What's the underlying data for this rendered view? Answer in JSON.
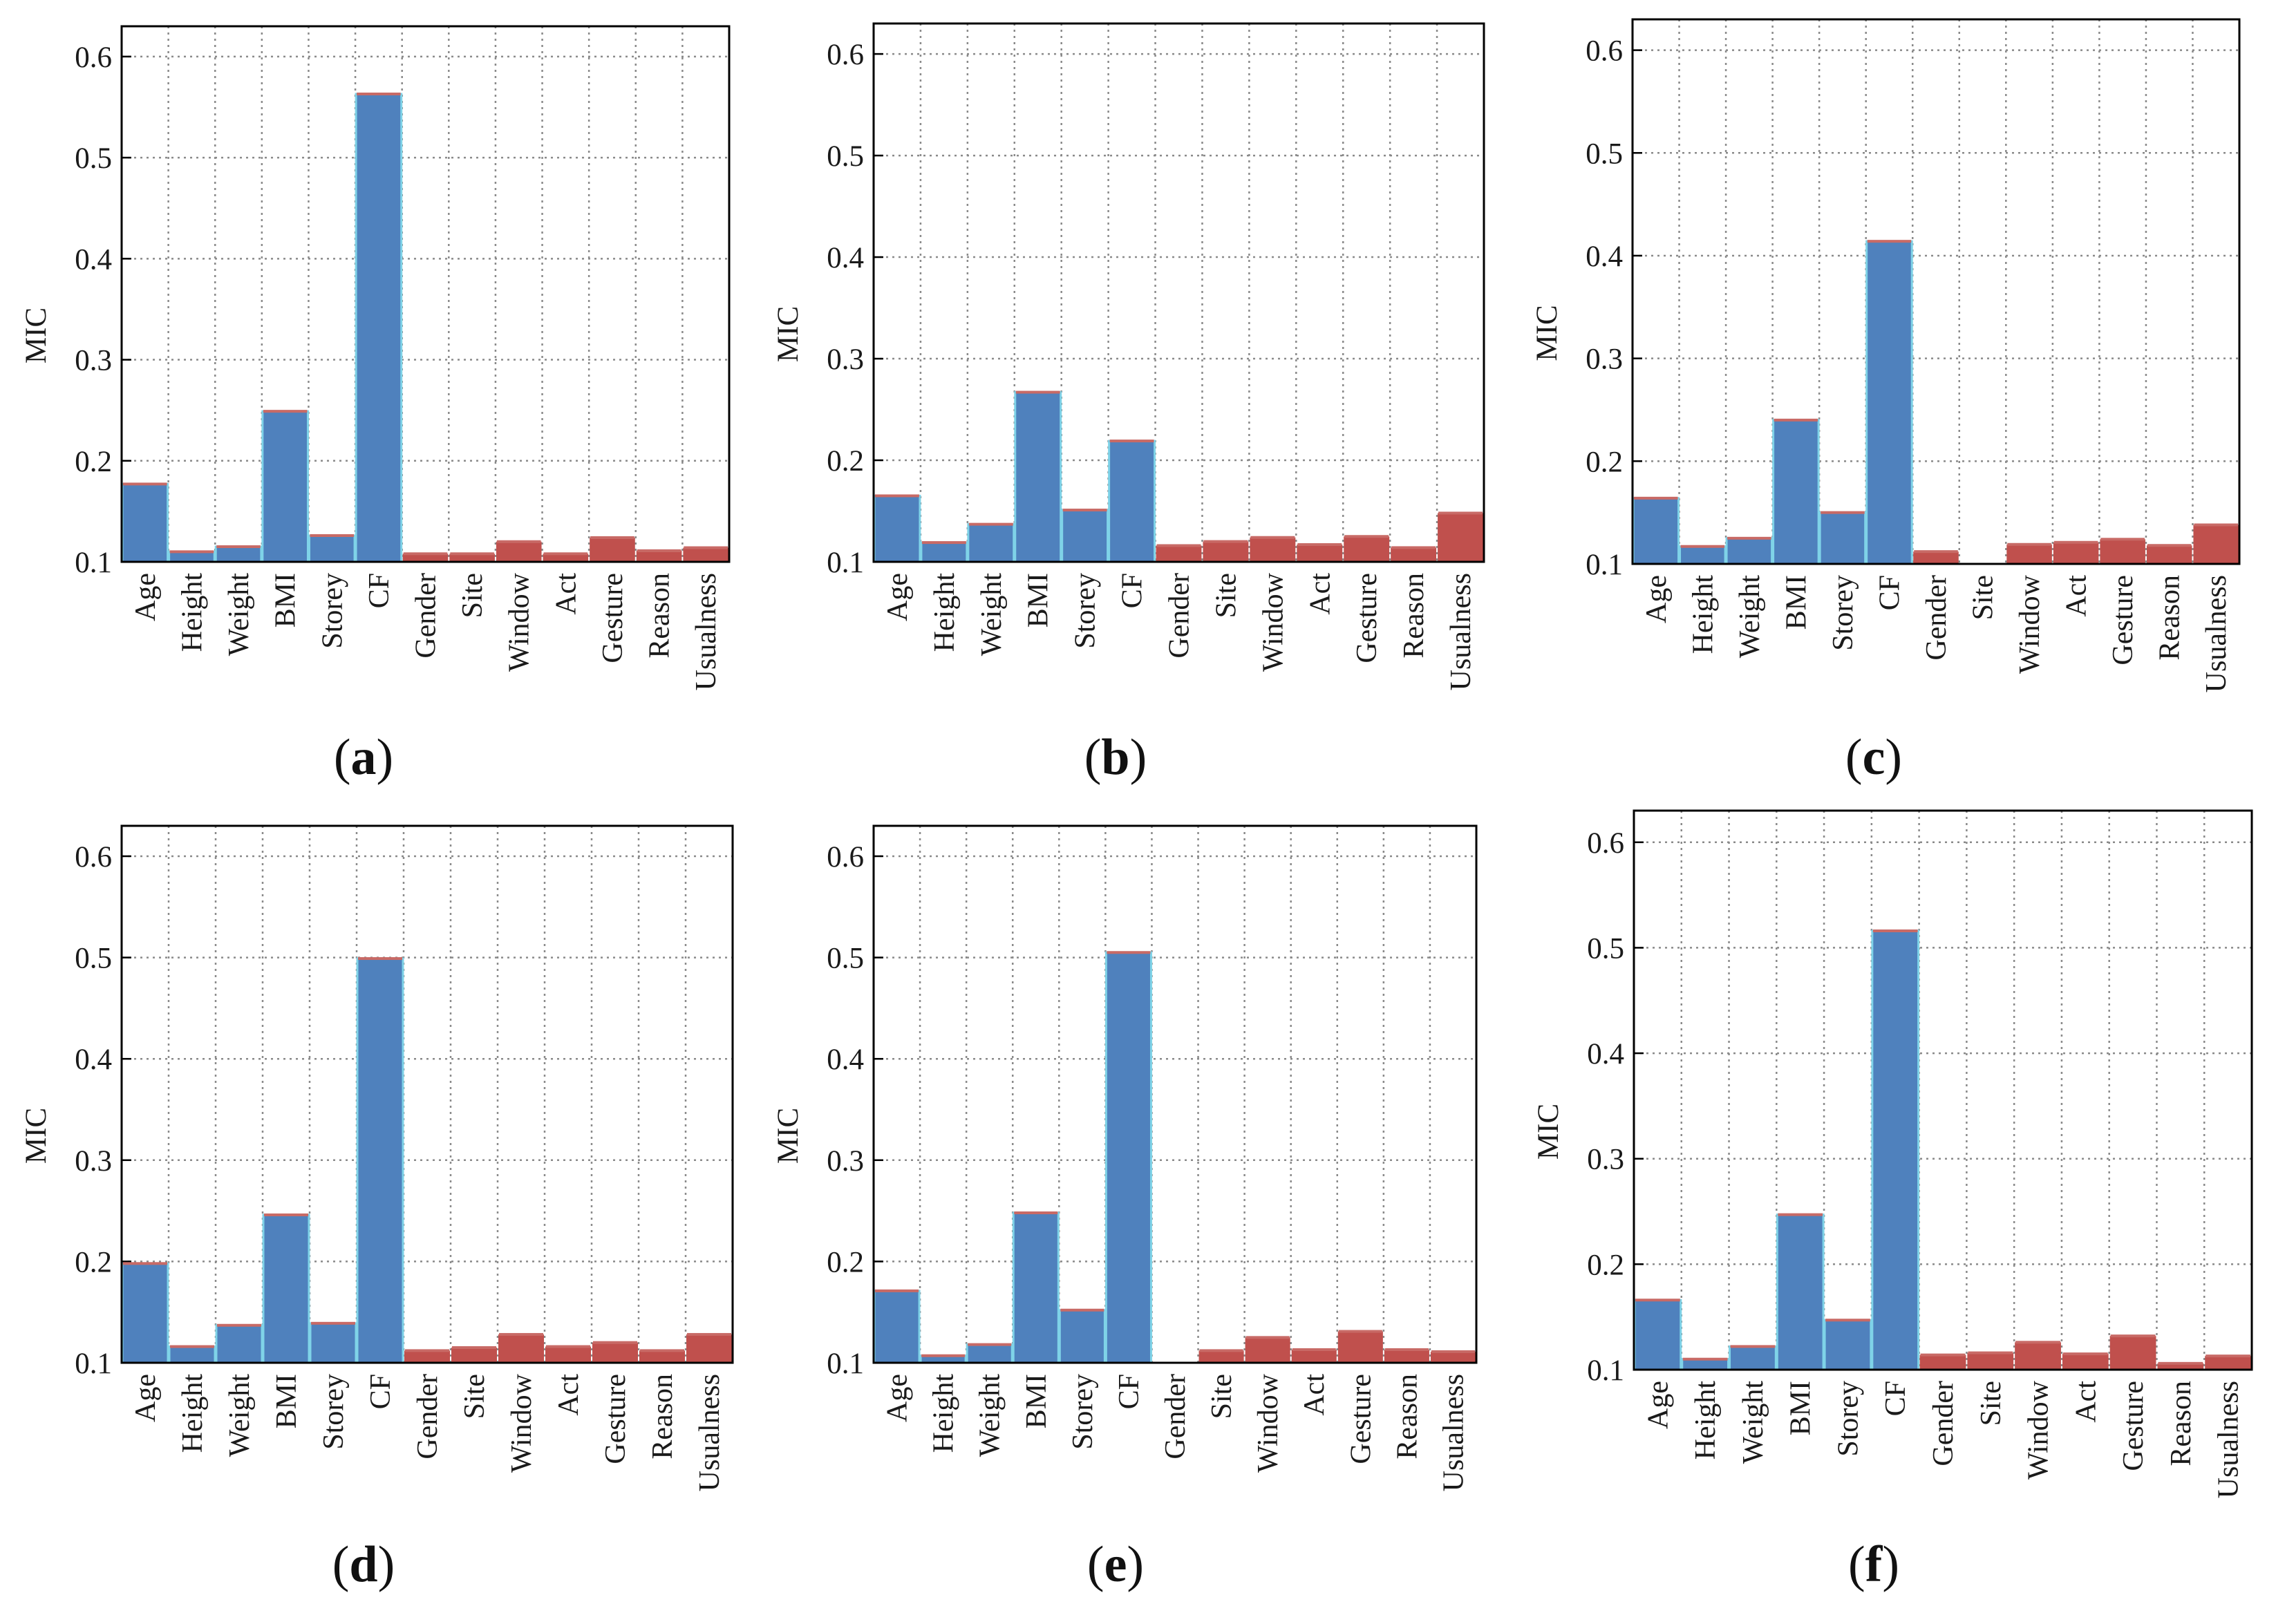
{
  "figure": {
    "colors": {
      "blue": "#4f81bd",
      "red": "#c0504d",
      "blue_edge": "#7fd3e8",
      "red_top": "#c86a66",
      "grid": "#8a8a8a",
      "axis": "#000000"
    }
  },
  "chart_data": [
    {
      "type": "bar",
      "panel_label": "a",
      "ylabel": "MIC",
      "ylim": [
        0.1,
        0.63
      ],
      "yticks": [
        "0.1",
        "0.2",
        "0.3",
        "0.4",
        "0.5",
        "0.6"
      ],
      "grid": true,
      "categories": [
        "Age",
        "Height",
        "Weight",
        "BMI",
        "Storey",
        "CF",
        "Gender",
        "Site",
        "Window",
        "Act",
        "Gesture",
        "Reason",
        "Usualness"
      ],
      "values": [
        0.177,
        0.11,
        0.115,
        0.249,
        0.126,
        0.563,
        0.108,
        0.108,
        0.12,
        0.108,
        0.124,
        0.111,
        0.114
      ],
      "groups": [
        "blue",
        "blue",
        "blue",
        "blue",
        "blue",
        "blue",
        "red",
        "red",
        "red",
        "red",
        "red",
        "red",
        "red"
      ]
    },
    {
      "type": "bar",
      "panel_label": "b",
      "ylabel": "MIC",
      "ylim": [
        0.1,
        0.63
      ],
      "yticks": [
        "0.1",
        "0.2",
        "0.3",
        "0.4",
        "0.5",
        "0.6"
      ],
      "grid": true,
      "categories": [
        "Age",
        "Height",
        "Weight",
        "BMI",
        "Storey",
        "CF",
        "Gender",
        "Site",
        "Window",
        "Act",
        "Gesture",
        "Reason",
        "Usualness"
      ],
      "values": [
        0.165,
        0.119,
        0.137,
        0.267,
        0.151,
        0.219,
        0.116,
        0.12,
        0.124,
        0.117,
        0.125,
        0.114,
        0.148
      ],
      "groups": [
        "blue",
        "blue",
        "blue",
        "blue",
        "blue",
        "blue",
        "red",
        "red",
        "red",
        "red",
        "red",
        "red",
        "red"
      ]
    },
    {
      "type": "bar",
      "panel_label": "c",
      "ylabel": "MIC",
      "ylim": [
        0.1,
        0.63
      ],
      "yticks": [
        "0.1",
        "0.2",
        "0.3",
        "0.4",
        "0.5",
        "0.6"
      ],
      "grid": true,
      "categories": [
        "Age",
        "Height",
        "Weight",
        "BMI",
        "Storey",
        "CF",
        "Gender",
        "Site",
        "Window",
        "Act",
        "Gesture",
        "Reason",
        "Usualness"
      ],
      "values": [
        0.164,
        0.117,
        0.125,
        0.24,
        0.15,
        0.414,
        0.112,
        0.1,
        0.119,
        0.121,
        0.124,
        0.118,
        0.138
      ],
      "groups": [
        "blue",
        "blue",
        "blue",
        "blue",
        "blue",
        "blue",
        "red",
        "red",
        "red",
        "red",
        "red",
        "red",
        "red"
      ]
    },
    {
      "type": "bar",
      "panel_label": "d",
      "ylabel": "MIC",
      "ylim": [
        0.1,
        0.63
      ],
      "yticks": [
        "0.1",
        "0.2",
        "0.3",
        "0.4",
        "0.5",
        "0.6"
      ],
      "grid": true,
      "categories": [
        "Age",
        "Height",
        "Weight",
        "BMI",
        "Storey",
        "CF",
        "Gender",
        "Site",
        "Window",
        "Act",
        "Gesture",
        "Reason",
        "Usualness"
      ],
      "values": [
        0.198,
        0.116,
        0.137,
        0.246,
        0.139,
        0.499,
        0.112,
        0.115,
        0.128,
        0.116,
        0.12,
        0.112,
        0.128
      ],
      "groups": [
        "blue",
        "blue",
        "blue",
        "blue",
        "blue",
        "blue",
        "red",
        "red",
        "red",
        "red",
        "red",
        "red",
        "red"
      ]
    },
    {
      "type": "bar",
      "panel_label": "e",
      "ylabel": "MIC",
      "ylim": [
        0.1,
        0.63
      ],
      "yticks": [
        "0.1",
        "0.2",
        "0.3",
        "0.4",
        "0.5",
        "0.6"
      ],
      "grid": true,
      "categories": [
        "Age",
        "Height",
        "Weight",
        "BMI",
        "Storey",
        "CF",
        "Gender",
        "Site",
        "Window",
        "Act",
        "Gesture",
        "Reason",
        "Usualness"
      ],
      "values": [
        0.171,
        0.107,
        0.118,
        0.248,
        0.152,
        0.505,
        0.1,
        0.112,
        0.125,
        0.113,
        0.131,
        0.113,
        0.111
      ],
      "groups": [
        "blue",
        "blue",
        "blue",
        "blue",
        "blue",
        "blue",
        "red",
        "red",
        "red",
        "red",
        "red",
        "red",
        "red"
      ]
    },
    {
      "type": "bar",
      "panel_label": "f",
      "ylabel": "MIC",
      "ylim": [
        0.1,
        0.63
      ],
      "yticks": [
        "0.1",
        "0.2",
        "0.3",
        "0.4",
        "0.5",
        "0.6"
      ],
      "grid": true,
      "categories": [
        "Age",
        "Height",
        "Weight",
        "BMI",
        "Storey",
        "CF",
        "Gender",
        "Site",
        "Window",
        "Act",
        "Gesture",
        "Reason",
        "Usualness"
      ],
      "values": [
        0.166,
        0.11,
        0.122,
        0.247,
        0.147,
        0.516,
        0.114,
        0.116,
        0.126,
        0.115,
        0.132,
        0.106,
        0.113
      ],
      "groups": [
        "blue",
        "blue",
        "blue",
        "blue",
        "blue",
        "blue",
        "red",
        "red",
        "red",
        "red",
        "red",
        "red",
        "red"
      ]
    }
  ]
}
